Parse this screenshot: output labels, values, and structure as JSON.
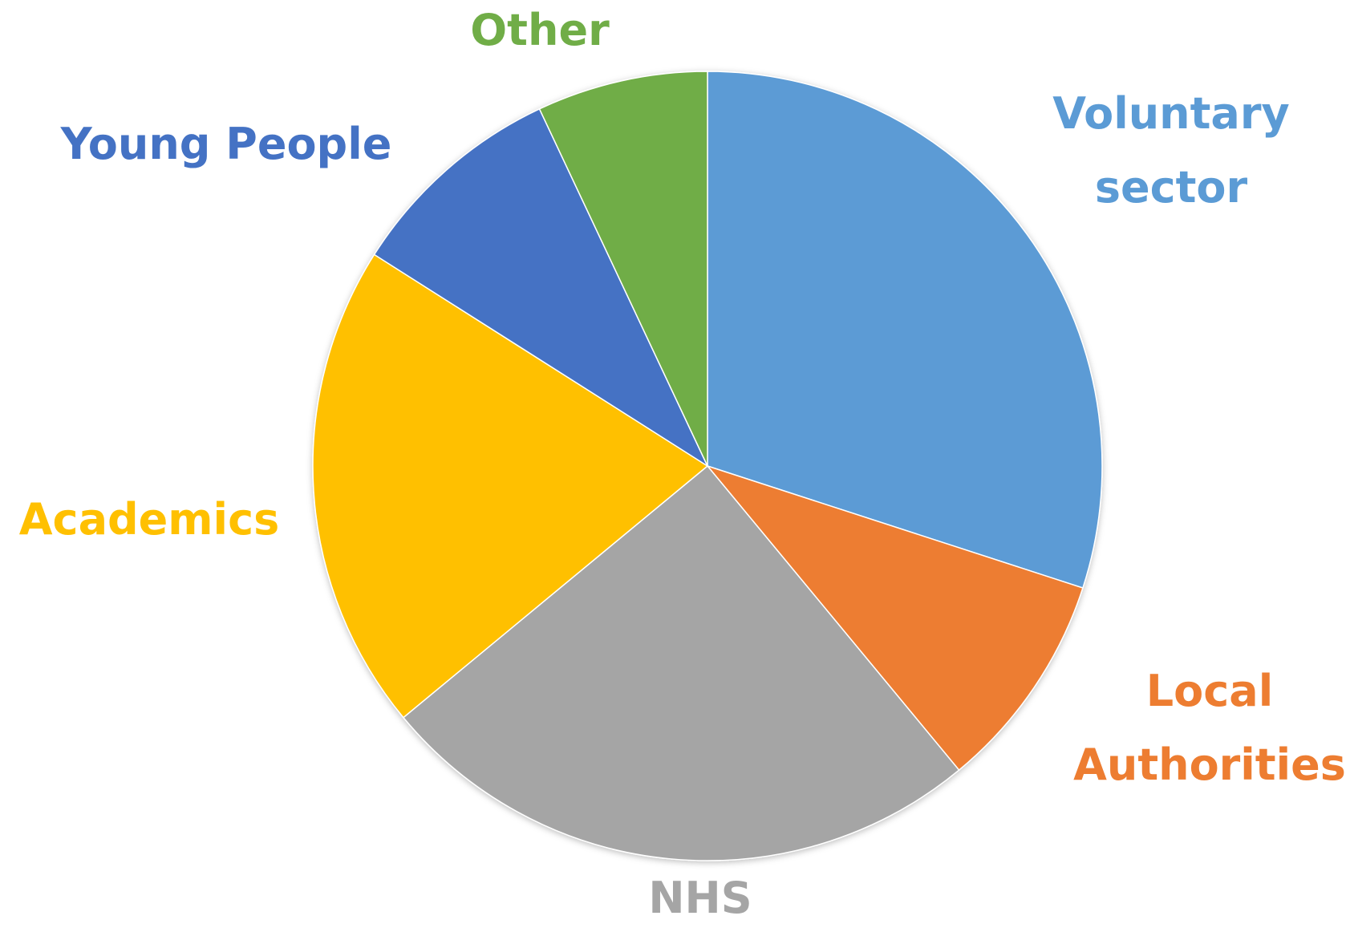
{
  "chart_data": {
    "type": "pie",
    "title": "",
    "legend": "none",
    "slices": [
      {
        "name": "Voluntary sector",
        "value": 30,
        "color": "#5B9BD5",
        "label_lines": [
          "Voluntary",
          "sector"
        ]
      },
      {
        "name": "Local Authorities",
        "value": 9,
        "color": "#ED7D31",
        "label_lines": [
          "Local",
          "Authorities"
        ]
      },
      {
        "name": "NHS",
        "value": 25,
        "color": "#A5A5A5",
        "label_lines": [
          "NHS"
        ]
      },
      {
        "name": "Academics",
        "value": 20,
        "color": "#FFC000",
        "label_lines": [
          "Academics"
        ]
      },
      {
        "name": "Young People",
        "value": 9,
        "color": "#4472C4",
        "label_lines": [
          "Young People"
        ]
      },
      {
        "name": "Other",
        "value": 7,
        "color": "#70AD47",
        "label_lines": [
          "Other"
        ]
      }
    ]
  }
}
